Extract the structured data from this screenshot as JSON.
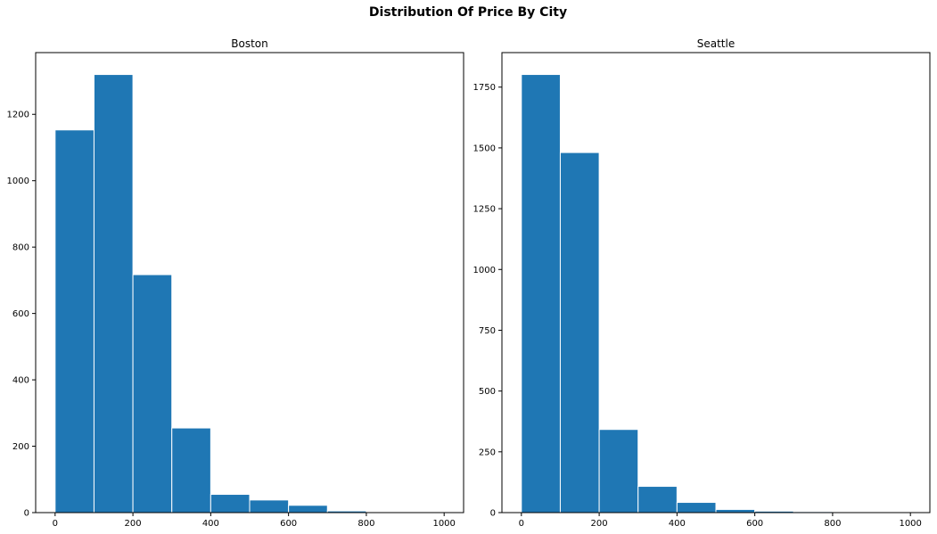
{
  "figure": {
    "title": "Distribution Of Price By City"
  },
  "colors": {
    "bar_fill": "#1f77b4",
    "bar_edge": "#ffffff",
    "axes": "#000000",
    "background": "#ffffff"
  },
  "chart_data": [
    {
      "type": "bar",
      "title": "Boston",
      "xlabel": "",
      "ylabel": "",
      "bin_edges": [
        0,
        100,
        200,
        300,
        400,
        500,
        600,
        700,
        800,
        900,
        1000
      ],
      "values": [
        1153,
        1320,
        717,
        255,
        55,
        38,
        22,
        5,
        2,
        1
      ],
      "xlim": [
        -50,
        1050
      ],
      "ylim": [
        0,
        1386
      ],
      "xticks": [
        0,
        200,
        400,
        600,
        800,
        1000
      ],
      "yticks": [
        0,
        200,
        400,
        600,
        800,
        1000,
        1200
      ],
      "grid": false
    },
    {
      "type": "bar",
      "title": "Seattle",
      "xlabel": "",
      "ylabel": "",
      "bin_edges": [
        0,
        100,
        200,
        300,
        400,
        500,
        600,
        700,
        800,
        900,
        1000
      ],
      "values": [
        1802,
        1481,
        342,
        108,
        42,
        13,
        6,
        4,
        1,
        1
      ],
      "xlim": [
        -50,
        1050
      ],
      "ylim": [
        0,
        1892
      ],
      "xticks": [
        0,
        200,
        400,
        600,
        800,
        1000
      ],
      "yticks": [
        0,
        250,
        500,
        750,
        1000,
        1250,
        1500,
        1750
      ],
      "grid": false
    }
  ]
}
